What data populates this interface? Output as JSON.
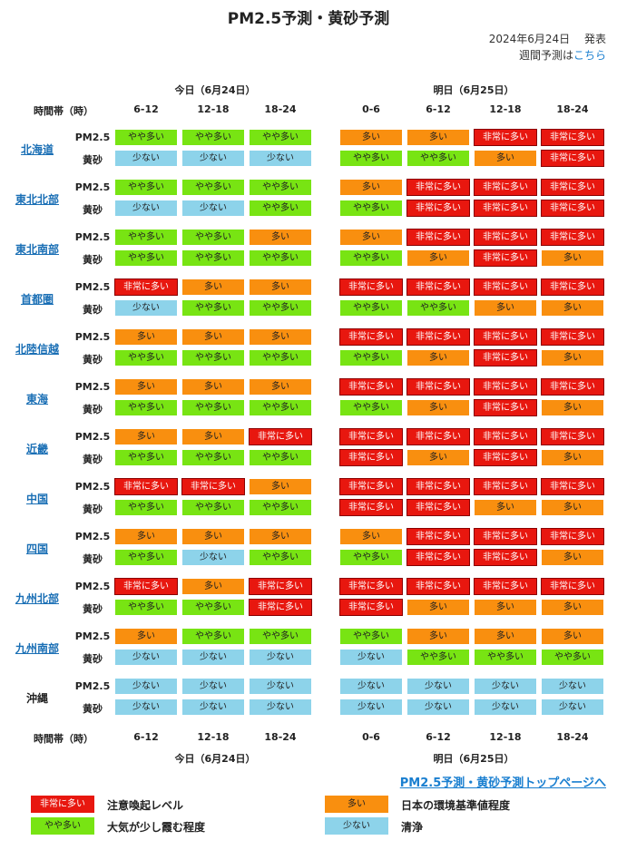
{
  "title": "PM2.5予測・黄砂予測",
  "issued": "2024年6月24日　 発表",
  "weekly_prefix": "週間予測は",
  "weekly_link": "こちら",
  "today_header": "今日（6月24日）",
  "tomorrow_header": "明日（6月25日）",
  "time_band_label": "時間帯（時）",
  "today_times": [
    "6-12",
    "12-18",
    "18-24"
  ],
  "tomorrow_times": [
    "0-6",
    "6-12",
    "12-18",
    "18-24"
  ],
  "row_labels": {
    "pm": "PM2.5",
    "dust": "黄砂"
  },
  "levels": {
    "lv4": "非常に多い",
    "lv3": "多い",
    "lv2": "やや多い",
    "lv1": "少ない"
  },
  "colors": {
    "lv4": "#e8170f",
    "lv3": "#f98f0f",
    "lv2": "#78e413",
    "lv1": "#8dd3ea"
  },
  "regions": [
    {
      "name": "北海道",
      "link": true,
      "pm": [
        "lv2",
        "lv2",
        "lv2",
        "lv3",
        "lv3",
        "lv4",
        "lv4"
      ],
      "dust": [
        "lv1",
        "lv1",
        "lv1",
        "lv2",
        "lv2",
        "lv3",
        "lv4"
      ]
    },
    {
      "name": "東北北部",
      "link": true,
      "pm": [
        "lv2",
        "lv2",
        "lv2",
        "lv3",
        "lv4",
        "lv4",
        "lv4"
      ],
      "dust": [
        "lv1",
        "lv1",
        "lv2",
        "lv2",
        "lv4",
        "lv4",
        "lv4"
      ]
    },
    {
      "name": "東北南部",
      "link": true,
      "pm": [
        "lv2",
        "lv2",
        "lv3",
        "lv3",
        "lv4",
        "lv4",
        "lv4"
      ],
      "dust": [
        "lv2",
        "lv2",
        "lv2",
        "lv2",
        "lv3",
        "lv4",
        "lv3"
      ]
    },
    {
      "name": "首都圏",
      "link": true,
      "pm": [
        "lv4",
        "lv3",
        "lv3",
        "lv4",
        "lv4",
        "lv4",
        "lv4"
      ],
      "dust": [
        "lv1",
        "lv2",
        "lv2",
        "lv2",
        "lv2",
        "lv3",
        "lv3"
      ]
    },
    {
      "name": "北陸信越",
      "link": true,
      "pm": [
        "lv3",
        "lv3",
        "lv3",
        "lv4",
        "lv4",
        "lv4",
        "lv4"
      ],
      "dust": [
        "lv2",
        "lv2",
        "lv2",
        "lv2",
        "lv3",
        "lv4",
        "lv3"
      ]
    },
    {
      "name": "東海",
      "link": true,
      "pm": [
        "lv3",
        "lv3",
        "lv3",
        "lv4",
        "lv4",
        "lv4",
        "lv4"
      ],
      "dust": [
        "lv2",
        "lv2",
        "lv2",
        "lv2",
        "lv3",
        "lv4",
        "lv3"
      ]
    },
    {
      "name": "近畿",
      "link": true,
      "pm": [
        "lv3",
        "lv3",
        "lv4",
        "lv4",
        "lv4",
        "lv4",
        "lv4"
      ],
      "dust": [
        "lv2",
        "lv2",
        "lv2",
        "lv4",
        "lv3",
        "lv4",
        "lv3"
      ]
    },
    {
      "name": "中国",
      "link": true,
      "pm": [
        "lv4",
        "lv4",
        "lv3",
        "lv4",
        "lv4",
        "lv4",
        "lv4"
      ],
      "dust": [
        "lv2",
        "lv2",
        "lv2",
        "lv4",
        "lv4",
        "lv3",
        "lv3"
      ]
    },
    {
      "name": "四国",
      "link": true,
      "pm": [
        "lv3",
        "lv3",
        "lv3",
        "lv3",
        "lv4",
        "lv4",
        "lv4"
      ],
      "dust": [
        "lv2",
        "lv1",
        "lv2",
        "lv2",
        "lv4",
        "lv4",
        "lv3"
      ]
    },
    {
      "name": "九州北部",
      "link": true,
      "pm": [
        "lv4",
        "lv3",
        "lv4",
        "lv4",
        "lv4",
        "lv4",
        "lv4"
      ],
      "dust": [
        "lv2",
        "lv2",
        "lv4",
        "lv4",
        "lv3",
        "lv3",
        "lv3"
      ]
    },
    {
      "name": "九州南部",
      "link": true,
      "pm": [
        "lv3",
        "lv2",
        "lv2",
        "lv2",
        "lv3",
        "lv3",
        "lv3"
      ],
      "dust": [
        "lv1",
        "lv1",
        "lv1",
        "lv1",
        "lv2",
        "lv2",
        "lv2"
      ]
    },
    {
      "name": "沖縄",
      "link": false,
      "pm": [
        "lv1",
        "lv1",
        "lv1",
        "lv1",
        "lv1",
        "lv1",
        "lv1"
      ],
      "dust": [
        "lv1",
        "lv1",
        "lv1",
        "lv1",
        "lv1",
        "lv1",
        "lv1"
      ]
    }
  ],
  "top_link": "PM2.5予測・黄砂予測トップページへ",
  "legend": [
    {
      "level": "lv4",
      "desc": "注意喚起レベル"
    },
    {
      "level": "lv3",
      "desc": "日本の環境基準値程度"
    },
    {
      "level": "lv2",
      "desc": "大気が少し霞む程度"
    },
    {
      "level": "lv1",
      "desc": "清浄"
    }
  ]
}
